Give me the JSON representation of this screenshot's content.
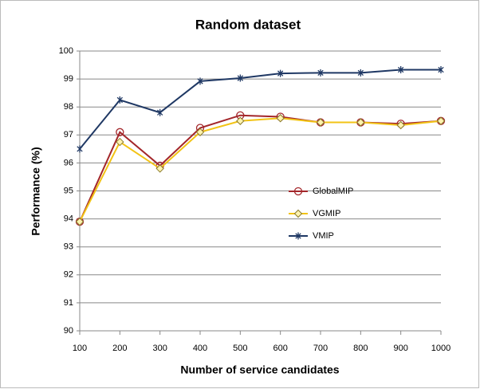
{
  "chart_data": {
    "type": "line",
    "title": "Random dataset",
    "xlabel": "Number of service candidates",
    "ylabel": "Performance (%)",
    "x": [
      100,
      200,
      300,
      400,
      500,
      600,
      700,
      800,
      900,
      1000
    ],
    "xlim": [
      100,
      1000
    ],
    "xticks": [
      100,
      200,
      300,
      400,
      500,
      600,
      700,
      800,
      900,
      1000
    ],
    "ylim": [
      90,
      100
    ],
    "yticks": [
      90,
      91,
      92,
      93,
      94,
      95,
      96,
      97,
      98,
      99,
      100
    ],
    "grid": true,
    "series": [
      {
        "name": "GlobalMIP",
        "color": "#a3262a",
        "marker": "circle",
        "values": [
          93.9,
          97.1,
          95.9,
          97.25,
          97.7,
          97.65,
          97.45,
          97.45,
          97.4,
          97.5
        ]
      },
      {
        "name": "VGMIP",
        "color": "#f2c315",
        "marker": "diamond",
        "values": [
          93.9,
          96.75,
          95.8,
          97.1,
          97.5,
          97.6,
          97.45,
          97.45,
          97.35,
          97.5
        ]
      },
      {
        "name": "VMIP",
        "color": "#1f3864",
        "marker": "star",
        "values": [
          96.5,
          98.25,
          97.8,
          98.92,
          99.03,
          99.2,
          99.22,
          99.22,
          99.33,
          99.33
        ]
      }
    ]
  }
}
